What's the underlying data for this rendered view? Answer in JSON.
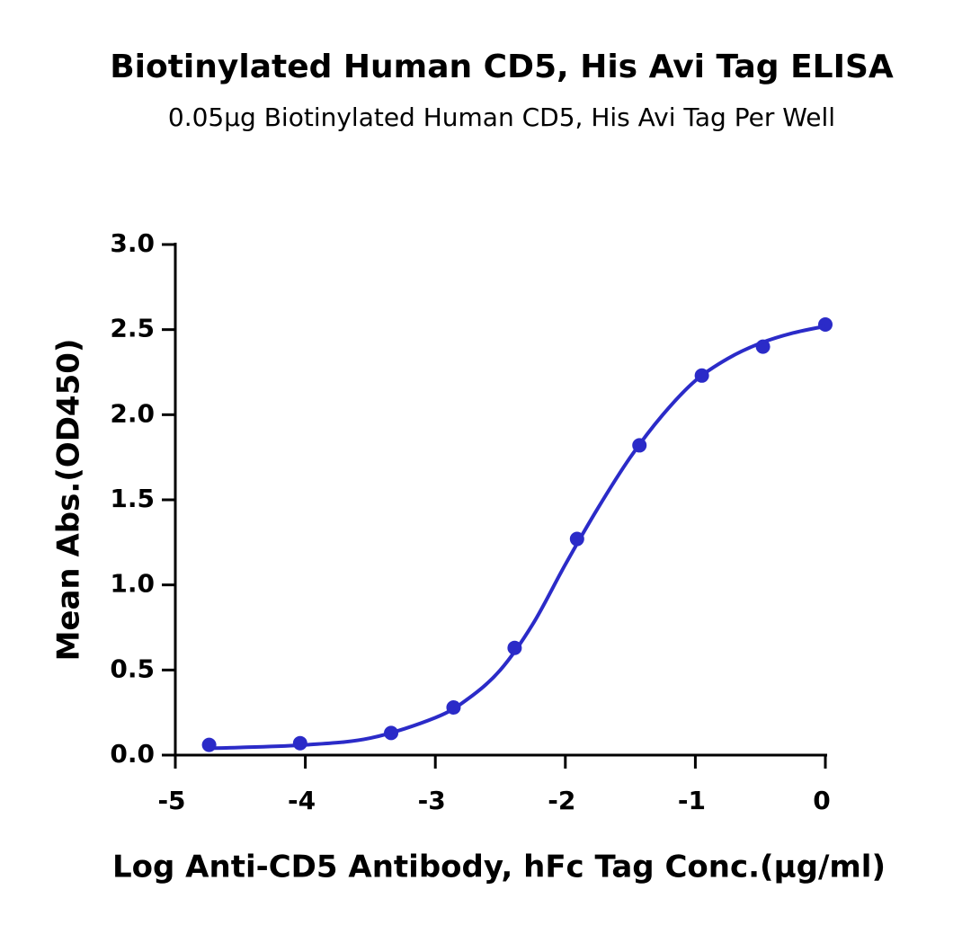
{
  "chart_data": {
    "type": "scatter",
    "title": "Biotinylated Human CD5, His Avi Tag ELISA",
    "subtitle": "0.05μg Biotinylated Human CD5, His Avi Tag Per Well",
    "x_label": "Log Anti-CD5 Antibody, hFc Tag Conc.(μg/ml)",
    "y_label": "Mean Abs.(OD450)",
    "series": [
      {
        "style": "points",
        "color": "#2b2bc8",
        "x": [
          -4.74,
          -4.04,
          -3.34,
          -2.86,
          -2.39,
          -1.91,
          -1.43,
          -0.95,
          -0.48,
          0
        ],
        "values": [
          0.06,
          0.07,
          0.13,
          0.28,
          0.63,
          1.27,
          1.82,
          2.23,
          2.4,
          2.53
        ]
      },
      {
        "style": "line",
        "color": "#2b2bc8",
        "x": [
          -4.74,
          -4.5,
          -4,
          -3.5,
          -3,
          -2.75,
          -2.5,
          -2.25,
          -2,
          -1.75,
          -1.5,
          -1.25,
          -1,
          -0.75,
          -0.5,
          -0.25,
          0
        ],
        "values": [
          0.04,
          0.045,
          0.06,
          0.1,
          0.22,
          0.33,
          0.5,
          0.77,
          1.12,
          1.45,
          1.75,
          2.0,
          2.2,
          2.33,
          2.42,
          2.48,
          2.52
        ]
      }
    ],
    "xlim": [
      -5,
      0
    ],
    "xticks": [
      -5,
      -4,
      -3,
      -2,
      -1,
      0
    ],
    "ylim": [
      0,
      3
    ],
    "yticks": [
      {
        "value": 0,
        "label": "0.0"
      },
      0.5,
      {
        "value": 1,
        "label": "1.0"
      },
      1.5,
      {
        "value": 2,
        "label": "2.0"
      },
      2.5,
      {
        "value": 3,
        "label": "3.0"
      }
    ],
    "grid": false
  }
}
